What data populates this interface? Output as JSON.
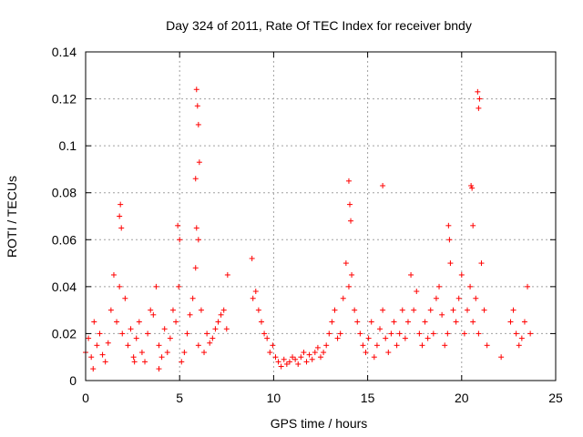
{
  "chart_data": {
    "type": "scatter",
    "title": "Day 324 of 2011, Rate Of TEC Index for receiver bndy",
    "xlabel": "GPS time / hours",
    "ylabel": "ROTI / TECUs",
    "xlim": [
      0,
      25
    ],
    "ylim": [
      0,
      0.14
    ],
    "xticks": [
      "0",
      "5",
      "10",
      "15",
      "20",
      "25"
    ],
    "yticks": [
      "0",
      "0.02",
      "0.04",
      "0.06",
      "0.08",
      "0.1",
      "0.12",
      "0.14"
    ],
    "grid": true,
    "marker": "plus",
    "color": "#ff0000",
    "series": [
      {
        "x": [
          0.0,
          0.15,
          0.3,
          0.45,
          0.6,
          0.75,
          0.9,
          1.05,
          1.2,
          1.35,
          1.5,
          1.65,
          1.8,
          1.95,
          2.1,
          2.25,
          2.4,
          2.55,
          2.7,
          2.85,
          3.0,
          3.15,
          3.3,
          3.45,
          3.6,
          3.75,
          3.9,
          4.05,
          4.2,
          4.35,
          4.5,
          4.65,
          4.8,
          4.95,
          5.1,
          5.25,
          5.4,
          5.55,
          5.7,
          5.85,
          6.0,
          6.15,
          6.3,
          6.45,
          6.6,
          6.75,
          6.9,
          7.05,
          7.2,
          7.35,
          7.5,
          8.9,
          9.05,
          9.2,
          9.35,
          9.5,
          9.65,
          9.8,
          9.95,
          10.1,
          10.25,
          10.4,
          10.55,
          10.7,
          10.85,
          11.0,
          11.15,
          11.3,
          11.45,
          11.6,
          11.75,
          11.9,
          12.05,
          12.2,
          12.35,
          12.5,
          12.65,
          12.8,
          12.95,
          13.1,
          13.25,
          13.4,
          13.55,
          13.7,
          13.85,
          14.0,
          14.15,
          14.3,
          14.45,
          14.6,
          14.75,
          14.9,
          15.05,
          15.2,
          15.35,
          15.5,
          15.65,
          15.8,
          15.95,
          16.1,
          16.25,
          16.4,
          16.55,
          16.7,
          16.85,
          17.0,
          17.15,
          17.3,
          17.45,
          17.6,
          17.75,
          17.9,
          18.05,
          18.2,
          18.35,
          18.5,
          18.65,
          18.8,
          18.95,
          19.1,
          19.25,
          19.4,
          19.55,
          19.7,
          19.85,
          20.0,
          20.15,
          20.3,
          20.45,
          20.6,
          20.75,
          20.9,
          21.05,
          21.2,
          21.35,
          22.1,
          22.6,
          22.75,
          22.9,
          23.05,
          23.2,
          23.35,
          23.5,
          23.65,
          1.8,
          1.85,
          1.9,
          5.9,
          5.95,
          6.0,
          6.05,
          5.85,
          5.9,
          6.0,
          14.0,
          14.05,
          14.1,
          15.8,
          20.5,
          20.55,
          20.6,
          20.85,
          20.9,
          20.95,
          4.9,
          5.0,
          19.3,
          19.35,
          0.4,
          2.6,
          3.9,
          7.55,
          8.85
        ],
        "y": [
          0.012,
          0.018,
          0.01,
          0.025,
          0.015,
          0.02,
          0.011,
          0.008,
          0.016,
          0.03,
          0.045,
          0.025,
          0.04,
          0.02,
          0.035,
          0.015,
          0.022,
          0.01,
          0.018,
          0.025,
          0.012,
          0.008,
          0.02,
          0.03,
          0.028,
          0.04,
          0.015,
          0.01,
          0.022,
          0.012,
          0.018,
          0.03,
          0.025,
          0.04,
          0.008,
          0.012,
          0.02,
          0.028,
          0.035,
          0.048,
          0.015,
          0.03,
          0.012,
          0.02,
          0.016,
          0.018,
          0.022,
          0.025,
          0.028,
          0.03,
          0.022,
          0.035,
          0.038,
          0.03,
          0.025,
          0.02,
          0.018,
          0.012,
          0.015,
          0.01,
          0.008,
          0.006,
          0.009,
          0.007,
          0.008,
          0.01,
          0.009,
          0.007,
          0.01,
          0.012,
          0.008,
          0.011,
          0.009,
          0.012,
          0.014,
          0.01,
          0.012,
          0.015,
          0.02,
          0.025,
          0.03,
          0.018,
          0.02,
          0.035,
          0.05,
          0.04,
          0.045,
          0.03,
          0.025,
          0.02,
          0.015,
          0.012,
          0.018,
          0.025,
          0.01,
          0.015,
          0.022,
          0.03,
          0.018,
          0.012,
          0.02,
          0.025,
          0.015,
          0.02,
          0.03,
          0.018,
          0.025,
          0.045,
          0.03,
          0.038,
          0.02,
          0.015,
          0.025,
          0.018,
          0.03,
          0.02,
          0.035,
          0.04,
          0.028,
          0.015,
          0.02,
          0.05,
          0.03,
          0.025,
          0.035,
          0.045,
          0.02,
          0.03,
          0.04,
          0.025,
          0.035,
          0.02,
          0.05,
          0.03,
          0.015,
          0.01,
          0.025,
          0.03,
          0.02,
          0.015,
          0.018,
          0.025,
          0.04,
          0.02,
          0.07,
          0.075,
          0.065,
          0.124,
          0.117,
          0.109,
          0.093,
          0.086,
          0.065,
          0.06,
          0.085,
          0.075,
          0.068,
          0.083,
          0.083,
          0.082,
          0.066,
          0.123,
          0.116,
          0.12,
          0.066,
          0.06,
          0.066,
          0.06,
          0.005,
          0.008,
          0.005,
          0.045,
          0.052
        ]
      }
    ]
  }
}
